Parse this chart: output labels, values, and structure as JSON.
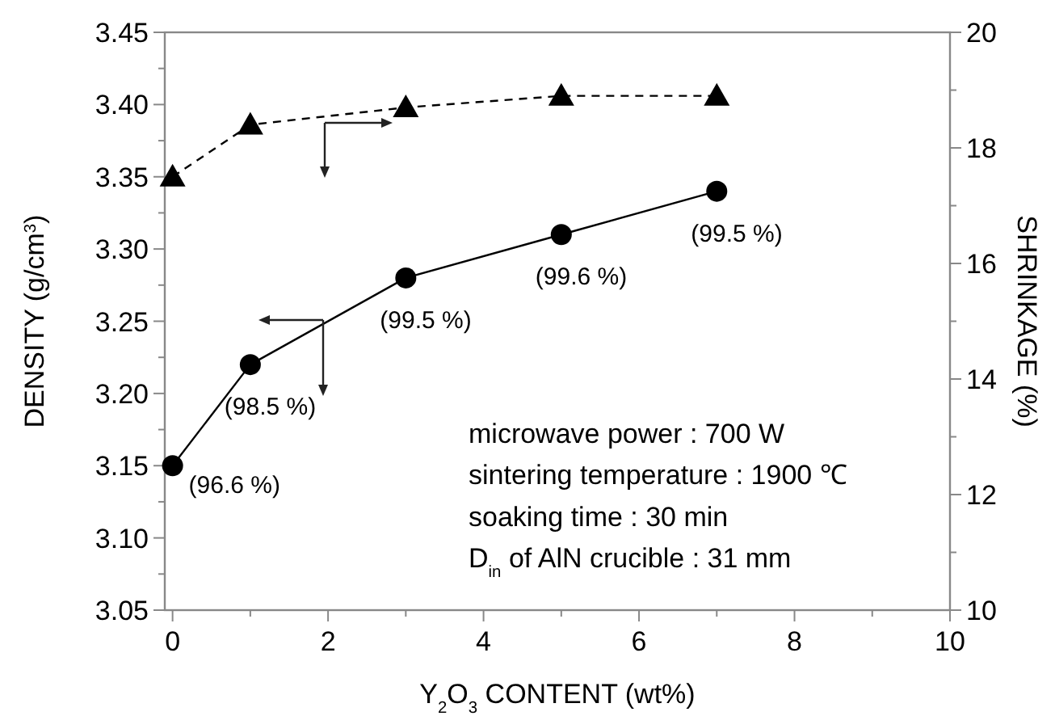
{
  "chart_data": {
    "type": "line",
    "xlabel": "Y$_{2}$O$_{3}$ CONTENT (wt%)",
    "ylabel": "DENSITY (g/cm$^{3}$)",
    "y2label": "SHRINKAGE (%)",
    "x": [
      0,
      1,
      3,
      5,
      7
    ],
    "series": [
      {
        "color": "#000000",
        "marker": "circle",
        "line_style": "solid",
        "values": [
          3.15,
          3.22,
          3.28,
          3.31,
          3.34
        ]
      },
      {
        "color": "#000000",
        "marker": "triangle",
        "line_style": "dashed",
        "axis": "y2",
        "values": [
          17.5,
          18.4,
          18.7,
          18.9,
          18.9
        ]
      }
    ],
    "xlim": [
      -0.1,
      10
    ],
    "xticks": [
      0,
      {
        "value": 1,
        "label": null
      },
      2,
      {
        "value": 3,
        "label": null
      },
      4,
      {
        "value": 5,
        "label": null
      },
      6,
      {
        "value": 7,
        "label": null
      },
      8,
      {
        "value": 9,
        "label": null
      },
      10
    ],
    "ylim": [
      3.05,
      3.45
    ],
    "yticks": [
      {
        "value": 3.05,
        "label": "3.05"
      },
      {
        "value": 3.075,
        "label": null
      },
      {
        "value": 3.1,
        "label": "3.10"
      },
      {
        "value": 3.125,
        "label": null
      },
      {
        "value": 3.15,
        "label": "3.15"
      },
      {
        "value": 3.175,
        "label": null
      },
      {
        "value": 3.2,
        "label": "3.20"
      },
      {
        "value": 3.225,
        "label": null
      },
      {
        "value": 3.25,
        "label": "3.25"
      },
      {
        "value": 3.275,
        "label": null
      },
      {
        "value": 3.3,
        "label": "3.30"
      },
      {
        "value": 3.325,
        "label": null
      },
      {
        "value": 3.35,
        "label": "3.35"
      },
      {
        "value": 3.375,
        "label": null
      },
      {
        "value": 3.4,
        "label": "3.40"
      },
      {
        "value": 3.425,
        "label": null
      },
      {
        "value": 3.45,
        "label": "3.45"
      }
    ],
    "y2lim": [
      10,
      20
    ],
    "y2ticks": [
      10,
      {
        "value": 11,
        "label": null
      },
      12,
      {
        "value": 13,
        "label": null
      },
      14,
      {
        "value": 15,
        "label": null
      },
      16,
      {
        "value": 17,
        "label": null
      },
      18,
      {
        "value": 19,
        "label": null
      },
      20
    ],
    "grid": false,
    "annotations": [
      {
        "text": "(96.6 %)",
        "x": 0,
        "y": 3.15
      },
      {
        "text": "(98.5 %)",
        "x": 1,
        "y": 3.22
      },
      {
        "text": "(99.5 %)",
        "x": 3,
        "y": 3.28
      },
      {
        "text": "(99.6 %)",
        "x": 5,
        "y": 3.31
      },
      {
        "text": "(99.5 %)",
        "x": 7,
        "y": 3.34
      },
      "microwave power : 700 W",
      "sintering temperature : 1900 ℃",
      "soaking time : 30 min",
      "D$_{in}$ of AlN crucible : 31 mm"
    ]
  }
}
